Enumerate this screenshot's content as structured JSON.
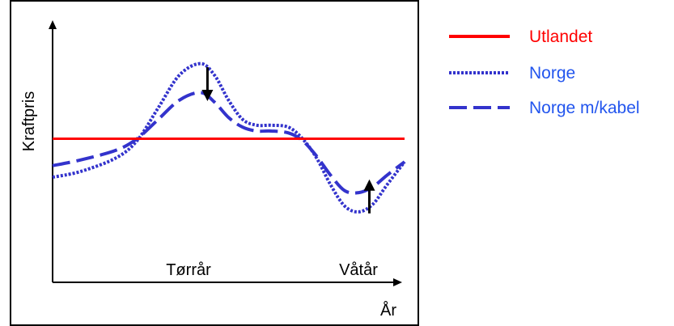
{
  "chart_data": {
    "type": "line",
    "xlabel": "År",
    "ylabel": "Kraftpris",
    "x_annotations": [
      {
        "text": "Tørrår",
        "at": 0.37
      },
      {
        "text": "Våtår",
        "at": 0.84
      }
    ],
    "series": [
      {
        "name": "Utlandet",
        "color": "#ff0000",
        "style": "solid",
        "x": [
          0,
          1
        ],
        "y": [
          0.54,
          0.54
        ]
      },
      {
        "name": "Norge",
        "color": "#3333cc",
        "style": "dotted",
        "x": [
          0,
          0.08,
          0.18,
          0.24,
          0.3,
          0.36,
          0.42,
          0.46,
          0.5,
          0.54,
          0.58,
          0.62,
          0.67,
          0.71,
          0.75,
          0.79,
          0.83,
          0.87,
          0.91,
          0.95,
          1.0
        ],
        "y": [
          0.34,
          0.37,
          0.44,
          0.53,
          0.7,
          0.87,
          0.93,
          0.87,
          0.74,
          0.64,
          0.61,
          0.61,
          0.6,
          0.54,
          0.44,
          0.3,
          0.19,
          0.16,
          0.2,
          0.3,
          0.42
        ]
      },
      {
        "name": "Norge m/kabel",
        "color": "#3333cc",
        "style": "dashed",
        "x": [
          0,
          0.08,
          0.18,
          0.24,
          0.3,
          0.36,
          0.42,
          0.46,
          0.5,
          0.54,
          0.58,
          0.62,
          0.67,
          0.71,
          0.75,
          0.79,
          0.83,
          0.87,
          0.91,
          0.95,
          1.0
        ],
        "y": [
          0.4,
          0.43,
          0.48,
          0.54,
          0.64,
          0.74,
          0.78,
          0.73,
          0.65,
          0.6,
          0.58,
          0.58,
          0.57,
          0.53,
          0.45,
          0.35,
          0.27,
          0.26,
          0.29,
          0.35,
          0.42
        ]
      }
    ],
    "arrows": [
      {
        "direction": "down",
        "x": 0.44
      },
      {
        "direction": "up",
        "x": 0.9
      }
    ],
    "grid": false,
    "legend_position": "right"
  }
}
